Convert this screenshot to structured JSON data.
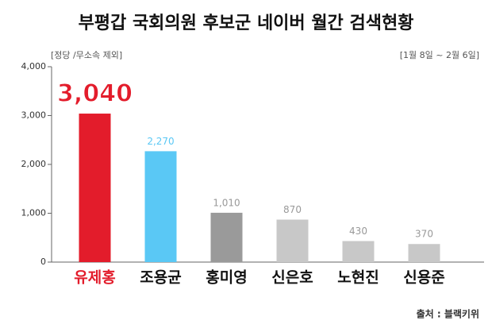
{
  "chart_data": {
    "type": "bar",
    "title": "부평갑 국회의원 후보군 네이버 월간 검색현황",
    "subtitle": "[정당 /무소속 제외]",
    "period": "[1월 8일 ~ 2월 6일]",
    "source": "출처 : 블랙키위",
    "categories": [
      "유제홍",
      "조용균",
      "홍미영",
      "신은호",
      "노현진",
      "신용준"
    ],
    "values": [
      3040,
      2270,
      1010,
      870,
      430,
      370
    ],
    "value_labels": [
      "3,040",
      "2,270",
      "1,010",
      "870",
      "430",
      "370"
    ],
    "colors": [
      "#e31c2b",
      "#5ac8f5",
      "#9a9a9a",
      "#c8c8c8",
      "#c8c8c8",
      "#c8c8c8"
    ],
    "ylim": [
      0,
      4000
    ],
    "yticks": [
      0,
      {
        "value": 1000,
        "label": "1,000"
      },
      {
        "value": 2000,
        "label": "2,000"
      },
      {
        "value": 3000,
        "label": "3,000"
      },
      {
        "value": 4000,
        "label": "4,000"
      }
    ]
  }
}
